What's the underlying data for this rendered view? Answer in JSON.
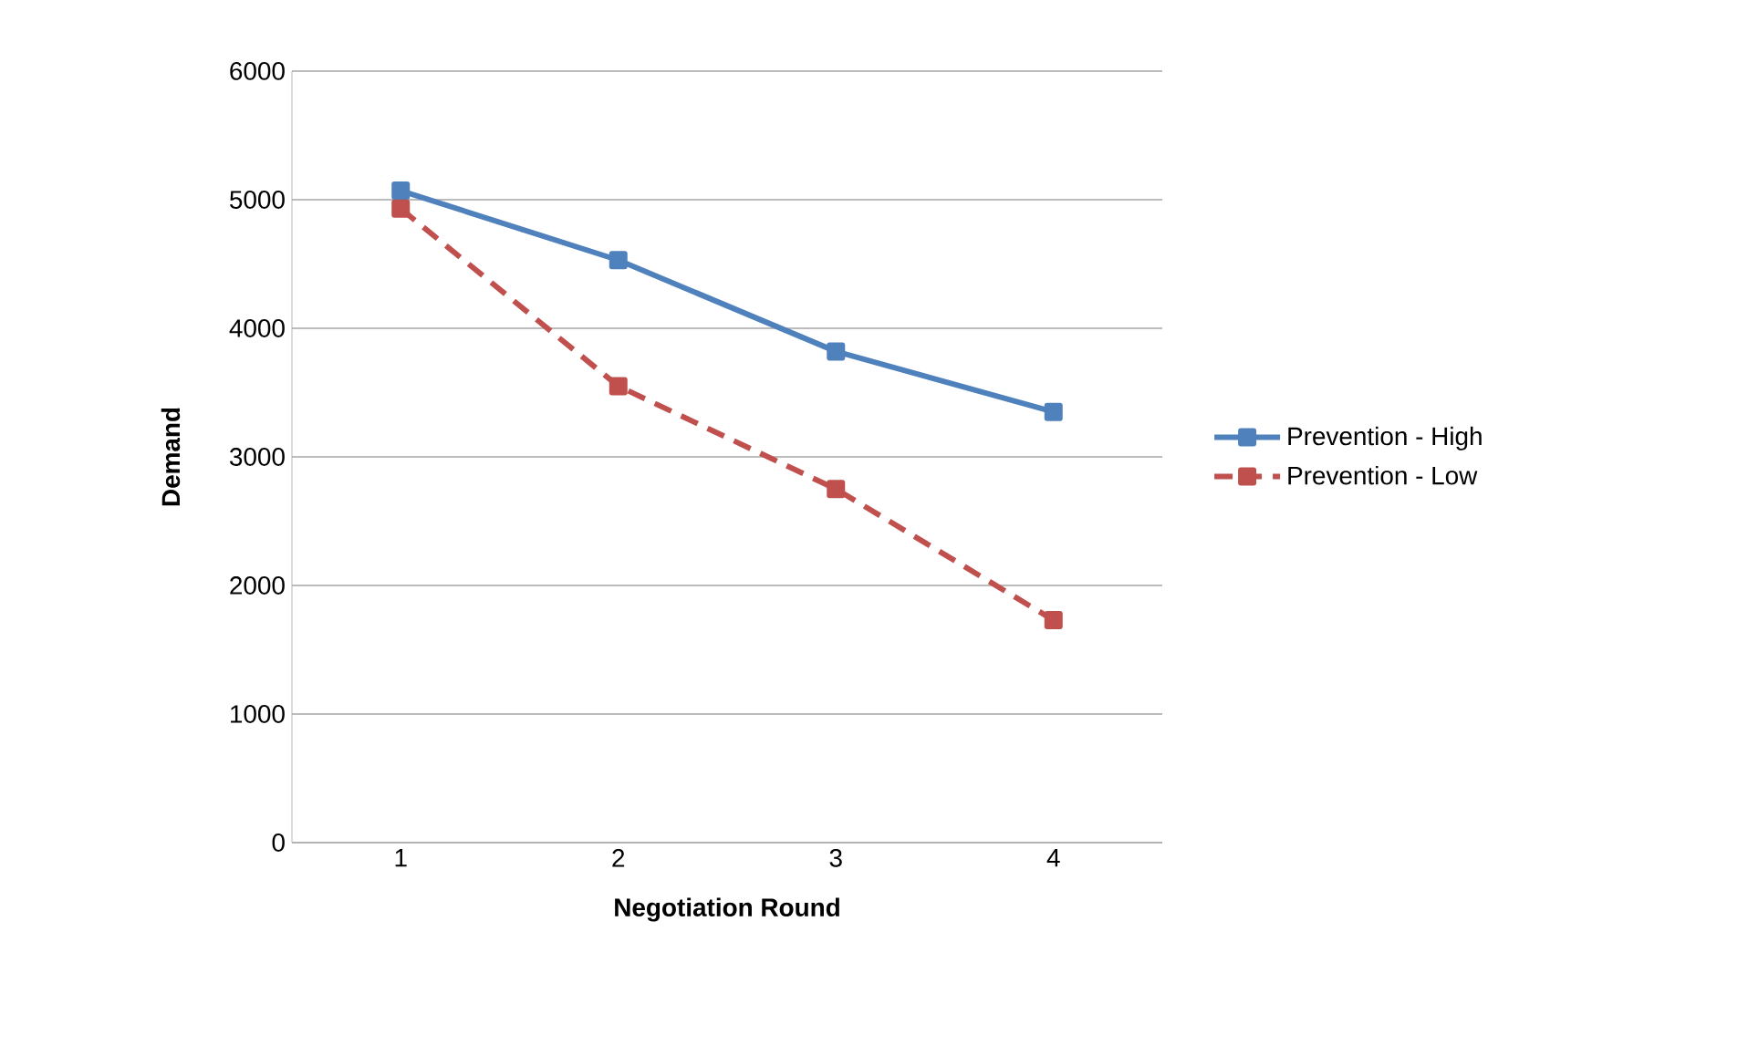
{
  "chart_data": {
    "type": "line",
    "xlabel": "Negotiation Round",
    "ylabel": "Demand",
    "categories": [
      "1",
      "2",
      "3",
      "4"
    ],
    "series": [
      {
        "name": "Prevention - High",
        "color": "#4f81bd",
        "values": [
          5070,
          4530,
          3820,
          3350
        ],
        "line_style": "solid"
      },
      {
        "name": "Prevention - Low",
        "color": "#c0504d",
        "values": [
          4930,
          3550,
          2750,
          1730
        ],
        "line_style": "dashed"
      }
    ],
    "ylim": [
      0,
      6000
    ],
    "yticks": [
      0,
      1000,
      2000,
      3000,
      4000,
      5000,
      6000
    ],
    "grid": "y",
    "legend": "right",
    "marker": "square"
  }
}
